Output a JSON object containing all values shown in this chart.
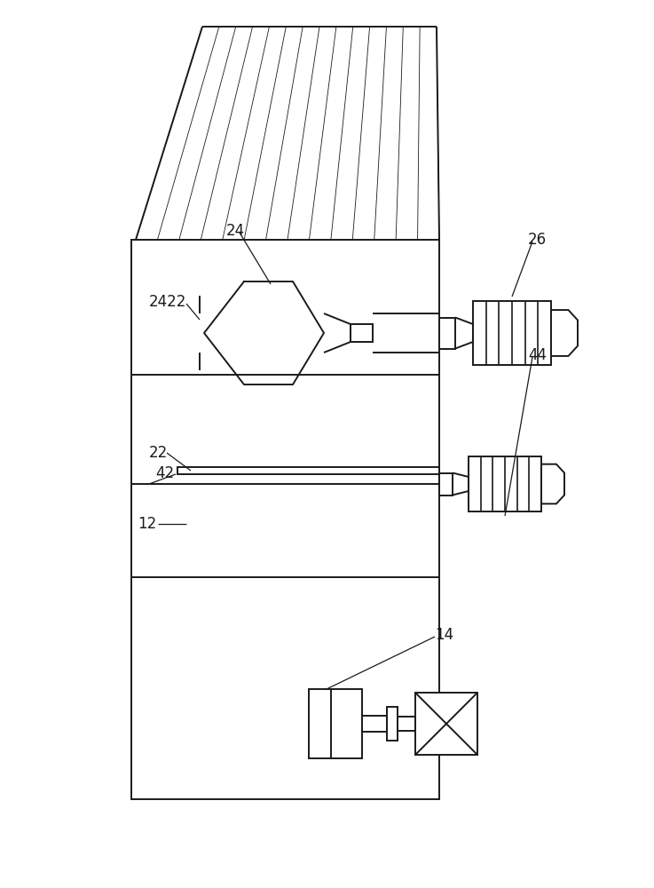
{
  "bg_color": "#ffffff",
  "line_color": "#1a1a1a",
  "lw": 1.4,
  "fig_w": 7.37,
  "fig_h": 10.0
}
